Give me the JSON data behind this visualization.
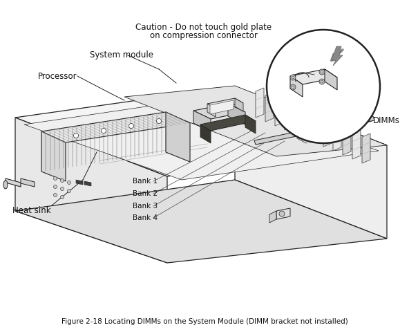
{
  "title": "Figure 2-18 Locating DIMMs on the System Module (DIMM bracket not installed)",
  "bg": "#ffffff",
  "ec": "#222222",
  "lw_main": 0.9,
  "lw_thin": 0.5,
  "labels": {
    "caution1": "Caution - Do not touch gold plate",
    "caution2": "on compression connector",
    "system_module": "System module",
    "processor": "Processor",
    "dimms": "DIMMs",
    "heat_sink": "Heat sink",
    "bank1": "Bank 1",
    "bank2": "Bank 2",
    "bank3": "Bank 3",
    "bank4": "Bank 4"
  },
  "fs": 8.5,
  "fs_small": 7.5,
  "fs_title": 7.5
}
